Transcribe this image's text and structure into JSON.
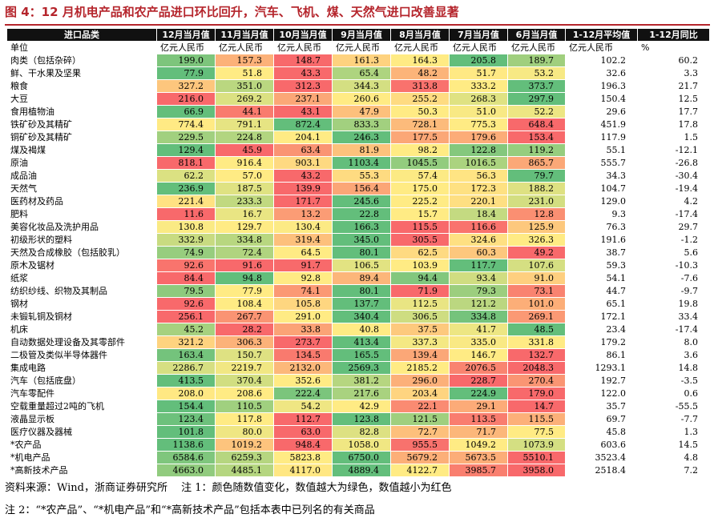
{
  "header": {
    "title": "图 4：12 月机电产品和农产品进口环比回升，汽车、飞机、煤、天然气进口改善显著"
  },
  "table": {
    "columns": [
      "进口品类",
      "12月当月值",
      "11月当月值",
      "10月当月值",
      "9月当月值",
      "8月当月值",
      "7月当月值",
      "6月当月值",
      "1-12月平均值",
      "1-12月同比"
    ],
    "units": [
      "单位",
      "亿元人民币",
      "亿元人民币",
      "亿元人民币",
      "亿元人民币",
      "亿元人民币",
      "亿元人民币",
      "亿元人民币",
      "亿元人民币",
      "%"
    ],
    "rows": [
      [
        "肉类（包括杂碎）",
        "199.0",
        "157.3",
        "148.7",
        "161.3",
        "164.3",
        "205.8",
        "189.7",
        "102.2",
        "60.2"
      ],
      [
        "鲜、干水果及坚果",
        "77.9",
        "51.8",
        "43.3",
        "65.4",
        "48.2",
        "51.7",
        "53.2",
        "32.6",
        "3.3"
      ],
      [
        "粮食",
        "327.2",
        "351.0",
        "312.3",
        "344.3",
        "313.8",
        "333.2",
        "373.7",
        "196.3",
        "21.7"
      ],
      [
        "大豆",
        "216.0",
        "269.2",
        "237.1",
        "260.6",
        "255.2",
        "268.3",
        "297.9",
        "150.4",
        "12.5"
      ],
      [
        "食用植物油",
        "66.9",
        "44.1",
        "43.1",
        "47.9",
        "50.3",
        "51.0",
        "52.2",
        "29.6",
        "17.7"
      ],
      [
        "铁矿砂及其精矿",
        "774.4",
        "791.1",
        "872.4",
        "833.3",
        "728.1",
        "775.3",
        "648.4",
        "451.9",
        "17.8"
      ],
      [
        "铜矿砂及其精矿",
        "229.5",
        "224.8",
        "204.1",
        "246.3",
        "177.5",
        "179.6",
        "153.4",
        "117.9",
        "1.5"
      ],
      [
        "煤及褐煤",
        "129.4",
        "45.9",
        "63.4",
        "81.9",
        "98.2",
        "122.8",
        "119.2",
        "55.1",
        "-12.1"
      ],
      [
        "原油",
        "818.1",
        "916.4",
        "903.1",
        "1103.4",
        "1045.5",
        "1016.5",
        "865.7",
        "555.7",
        "-26.8"
      ],
      [
        "成品油",
        "62.2",
        "57.0",
        "43.2",
        "55.3",
        "57.4",
        "56.3",
        "79.7",
        "34.3",
        "-30.4"
      ],
      [
        "天然气",
        "236.9",
        "187.5",
        "139.9",
        "156.4",
        "175.0",
        "172.3",
        "188.2",
        "104.7",
        "-19.4"
      ],
      [
        "医药材及药品",
        "221.4",
        "233.3",
        "171.7",
        "245.6",
        "225.2",
        "220.1",
        "231.0",
        "129.0",
        "4.2"
      ],
      [
        "肥料",
        "11.6",
        "16.7",
        "13.2",
        "22.8",
        "15.7",
        "18.4",
        "12.8",
        "9.3",
        "-17.4"
      ],
      [
        "美容化妆品及洗护用品",
        "130.8",
        "129.7",
        "130.4",
        "166.3",
        "115.5",
        "116.6",
        "125.9",
        "76.3",
        "29.7"
      ],
      [
        "初级形状的塑料",
        "332.9",
        "334.8",
        "319.4",
        "345.0",
        "305.5",
        "324.6",
        "326.3",
        "191.6",
        "-1.2"
      ],
      [
        "天然及合成橡胶（包括胶乳）",
        "74.9",
        "72.4",
        "64.5",
        "80.1",
        "62.5",
        "60.3",
        "49.2",
        "38.7",
        "5.6"
      ],
      [
        "原木及锯材",
        "92.6",
        "91.6",
        "91.7",
        "106.5",
        "103.9",
        "117.7",
        "107.6",
        "59.3",
        "-10.3"
      ],
      [
        "纸浆",
        "84.4",
        "94.8",
        "92.8",
        "89.4",
        "94.4",
        "93.4",
        "91.0",
        "54.1",
        "-7.6"
      ],
      [
        "纺织纱线、织物及其制品",
        "79.5",
        "77.9",
        "74.1",
        "80.1",
        "71.9",
        "79.3",
        "73.1",
        "44.7",
        "-9.7"
      ],
      [
        "钢材",
        "92.6",
        "108.4",
        "105.8",
        "137.7",
        "112.5",
        "121.2",
        "101.0",
        "65.1",
        "19.8"
      ],
      [
        "未锻轧铜及铜材",
        "256.1",
        "267.7",
        "291.0",
        "340.4",
        "306.5",
        "334.8",
        "269.1",
        "172.1",
        "33.4"
      ],
      [
        "机床",
        "45.2",
        "28.2",
        "33.8",
        "40.8",
        "37.5",
        "41.7",
        "48.5",
        "23.4",
        "-17.4"
      ],
      [
        "自动数据处理设备及其零部件",
        "321.2",
        "306.3",
        "273.7",
        "413.4",
        "337.3",
        "335.0",
        "331.8",
        "179.2",
        "8.0"
      ],
      [
        "二极管及类似半导体器件",
        "163.4",
        "150.7",
        "134.5",
        "165.5",
        "139.4",
        "146.7",
        "132.7",
        "86.1",
        "3.6"
      ],
      [
        "集成电路",
        "2286.7",
        "2219.7",
        "2132.0",
        "2569.3",
        "2185.2",
        "2076.5",
        "2048.3",
        "1293.1",
        "14.8"
      ],
      [
        "汽车（包括底盘）",
        "413.5",
        "370.4",
        "352.6",
        "381.2",
        "296.0",
        "228.7",
        "270.4",
        "192.7",
        "-3.5"
      ],
      [
        "汽车零配件",
        "208.0",
        "208.6",
        "222.4",
        "217.6",
        "203.4",
        "224.9",
        "179.0",
        "122.0",
        "0.6"
      ],
      [
        "空载重量超过2吨的飞机",
        "154.4",
        "110.5",
        "54.2",
        "42.9",
        "22.1",
        "29.1",
        "14.7",
        "35.7",
        "-55.5"
      ],
      [
        "液晶显示板",
        "123.4",
        "117.8",
        "112.7",
        "123.8",
        "121.5",
        "113.5",
        "115.5",
        "69.7",
        "-7.7"
      ],
      [
        "医疗仪器及器械",
        "101.8",
        "80.0",
        "63.0",
        "82.8",
        "72.7",
        "71.7",
        "77.5",
        "45.8",
        "1.3"
      ],
      [
        "*农产品",
        "1138.6",
        "1019.2",
        "948.4",
        "1058.0",
        "955.5",
        "1049.2",
        "1073.9",
        "603.6",
        "14.5"
      ],
      [
        "*机电产品",
        "6584.6",
        "6259.3",
        "5823.8",
        "6750.0",
        "5679.2",
        "5673.5",
        "5510.1",
        "3523.4",
        "4.8"
      ],
      [
        "*高新技术产品",
        "4663.0",
        "4485.1",
        "4117.0",
        "4889.4",
        "4122.7",
        "3985.7",
        "3958.0",
        "2518.4",
        "7.2"
      ]
    ]
  },
  "notes": [
    "资料来源：Wind，浙商证券研究所　 注 1：颜色随数值变化，数值越大为绿色，数值越小为红色",
    "注 2：“*农产品”、“*机电产品”和“*高新技术产品”包括本表中已列名的有关商品"
  ]
}
